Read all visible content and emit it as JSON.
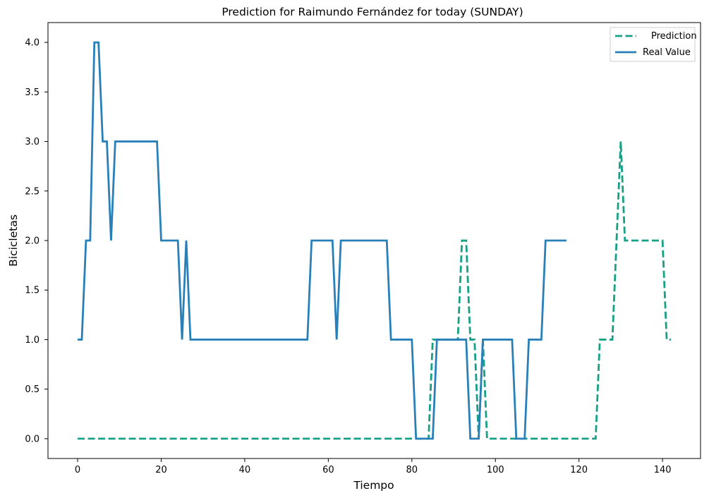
{
  "chart_data": {
    "type": "line",
    "title": "Prediction for Raimundo Fernández for today (SUNDAY)",
    "xlabel": "Tiempo",
    "ylabel": "Bicicletas",
    "xlim": [
      -7.1,
      149.1
    ],
    "ylim": [
      -0.2,
      4.2
    ],
    "xticks": [
      0,
      20,
      40,
      60,
      80,
      100,
      120,
      140
    ],
    "yticks": [
      0.0,
      0.5,
      1.0,
      1.5,
      2.0,
      2.5,
      3.0,
      3.5,
      4.0
    ],
    "grid": false,
    "legend_position": "upper right",
    "series": [
      {
        "name": "Prediction",
        "color": "#16a085",
        "style": "dashed",
        "x": [
          0,
          1,
          2,
          3,
          4,
          5,
          6,
          7,
          8,
          9,
          10,
          11,
          12,
          13,
          14,
          15,
          16,
          17,
          18,
          19,
          20,
          21,
          22,
          23,
          24,
          25,
          26,
          27,
          28,
          29,
          30,
          31,
          32,
          33,
          34,
          35,
          36,
          37,
          38,
          39,
          40,
          41,
          42,
          43,
          44,
          45,
          46,
          47,
          48,
          49,
          50,
          51,
          52,
          53,
          54,
          55,
          56,
          57,
          58,
          59,
          60,
          61,
          62,
          63,
          64,
          65,
          66,
          67,
          68,
          69,
          70,
          71,
          72,
          73,
          74,
          75,
          76,
          77,
          78,
          79,
          80,
          81,
          82,
          83,
          84,
          85,
          86,
          87,
          88,
          89,
          90,
          91,
          92,
          93,
          94,
          95,
          96,
          97,
          98,
          99,
          100,
          101,
          102,
          103,
          104,
          105,
          106,
          107,
          108,
          109,
          110,
          111,
          112,
          113,
          114,
          115,
          116,
          117,
          118,
          119,
          120,
          121,
          122,
          123,
          124,
          125,
          126,
          127,
          128,
          129,
          130,
          131,
          132,
          133,
          134,
          135,
          136,
          137,
          138,
          139,
          140,
          141,
          142
        ],
        "values": [
          0,
          0,
          0,
          0,
          0,
          0,
          0,
          0,
          0,
          0,
          0,
          0,
          0,
          0,
          0,
          0,
          0,
          0,
          0,
          0,
          0,
          0,
          0,
          0,
          0,
          0,
          0,
          0,
          0,
          0,
          0,
          0,
          0,
          0,
          0,
          0,
          0,
          0,
          0,
          0,
          0,
          0,
          0,
          0,
          0,
          0,
          0,
          0,
          0,
          0,
          0,
          0,
          0,
          0,
          0,
          0,
          0,
          0,
          0,
          0,
          0,
          0,
          0,
          0,
          0,
          0,
          0,
          0,
          0,
          0,
          0,
          0,
          0,
          0,
          0,
          0,
          0,
          0,
          0,
          0,
          0,
          0,
          0,
          0,
          0,
          1,
          1,
          1,
          1,
          1,
          1,
          1,
          2,
          2,
          1,
          1,
          0,
          1,
          0,
          0,
          0,
          0,
          0,
          0,
          0,
          0,
          0,
          0,
          0,
          0,
          0,
          0,
          0,
          0,
          0,
          0,
          0,
          0,
          0,
          0,
          0,
          0,
          0,
          0,
          0,
          1,
          1,
          1,
          1,
          2,
          3,
          2,
          2,
          2,
          2,
          2,
          2,
          2,
          2,
          2,
          2,
          1,
          1
        ]
      },
      {
        "name": "Real Value",
        "color": "#2980b9",
        "style": "solid",
        "x": [
          0,
          1,
          2,
          3,
          4,
          5,
          6,
          7,
          8,
          9,
          10,
          11,
          12,
          13,
          14,
          15,
          16,
          17,
          18,
          19,
          20,
          21,
          22,
          23,
          24,
          25,
          26,
          27,
          28,
          29,
          30,
          31,
          32,
          33,
          34,
          35,
          36,
          37,
          38,
          39,
          40,
          41,
          42,
          43,
          44,
          45,
          46,
          47,
          48,
          49,
          50,
          51,
          52,
          53,
          54,
          55,
          56,
          57,
          58,
          59,
          60,
          61,
          62,
          63,
          64,
          65,
          66,
          67,
          68,
          69,
          70,
          71,
          72,
          73,
          74,
          75,
          76,
          77,
          78,
          79,
          80,
          81,
          82,
          83,
          84,
          85,
          86,
          87,
          88,
          89,
          90,
          91,
          92,
          93,
          94,
          95,
          96,
          97,
          98,
          99,
          100,
          101,
          102,
          103,
          104,
          105,
          106,
          107,
          108,
          109,
          110,
          111,
          112,
          113,
          114,
          115,
          116,
          117
        ],
        "values": [
          1,
          1,
          2,
          2,
          4,
          4,
          3,
          3,
          2,
          3,
          3,
          3,
          3,
          3,
          3,
          3,
          3,
          3,
          3,
          3,
          2,
          2,
          2,
          2,
          2,
          1,
          2,
          1,
          1,
          1,
          1,
          1,
          1,
          1,
          1,
          1,
          1,
          1,
          1,
          1,
          1,
          1,
          1,
          1,
          1,
          1,
          1,
          1,
          1,
          1,
          1,
          1,
          1,
          1,
          1,
          1,
          2,
          2,
          2,
          2,
          2,
          2,
          1,
          2,
          2,
          2,
          2,
          2,
          2,
          2,
          2,
          2,
          2,
          2,
          2,
          1,
          1,
          1,
          1,
          1,
          1,
          0,
          0,
          0,
          0,
          0,
          1,
          1,
          1,
          1,
          1,
          1,
          1,
          1,
          0,
          0,
          0,
          1,
          1,
          1,
          1,
          1,
          1,
          1,
          1,
          0,
          0,
          0,
          1,
          1,
          1,
          1,
          2,
          2,
          2,
          2,
          2,
          2
        ]
      }
    ]
  }
}
